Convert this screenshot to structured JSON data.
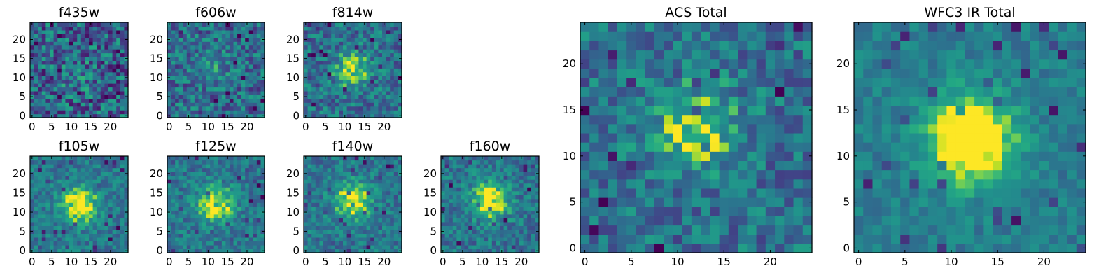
{
  "chart_data": [
    {
      "type": "heatmap",
      "title": "f435w",
      "xlim": [
        0,
        24
      ],
      "ylim": [
        0,
        24
      ],
      "xticks": [
        0,
        5,
        10,
        15,
        20
      ],
      "yticks": [
        0,
        5,
        10,
        15,
        20
      ],
      "peak": [
        12,
        10
      ],
      "peak_strength": 0.08,
      "noise": 0.55,
      "colormap": "viridis"
    },
    {
      "type": "heatmap",
      "title": "f606w",
      "xlim": [
        0,
        24
      ],
      "ylim": [
        0,
        24
      ],
      "xticks": [
        0,
        5,
        10,
        15,
        20
      ],
      "yticks": [
        0,
        5,
        10,
        15,
        20
      ],
      "peak": [
        11,
        13
      ],
      "peak_strength": 0.22,
      "noise": 0.45,
      "colormap": "viridis"
    },
    {
      "type": "heatmap",
      "title": "f814w",
      "xlim": [
        0,
        24
      ],
      "ylim": [
        0,
        24
      ],
      "xticks": [
        0,
        5,
        10,
        15,
        20
      ],
      "yticks": [
        0,
        5,
        10,
        15,
        20
      ],
      "peak": [
        12,
        12
      ],
      "peak_strength": 0.45,
      "noise": 0.4,
      "colormap": "viridis"
    },
    {
      "type": "heatmap",
      "title": "f105w",
      "xlim": [
        0,
        24
      ],
      "ylim": [
        0,
        24
      ],
      "xticks": [
        0,
        5,
        10,
        15,
        20
      ],
      "yticks": [
        0,
        5,
        10,
        15,
        20
      ],
      "peak": [
        12,
        12
      ],
      "peak_strength": 0.62,
      "noise": 0.28,
      "colormap": "viridis"
    },
    {
      "type": "heatmap",
      "title": "f125w",
      "xlim": [
        0,
        24
      ],
      "ylim": [
        0,
        24
      ],
      "xticks": [
        0,
        5,
        10,
        15,
        20
      ],
      "yticks": [
        0,
        5,
        10,
        15,
        20
      ],
      "peak": [
        12,
        12
      ],
      "peak_strength": 0.58,
      "noise": 0.3,
      "colormap": "viridis"
    },
    {
      "type": "heatmap",
      "title": "f140w",
      "xlim": [
        0,
        24
      ],
      "ylim": [
        0,
        24
      ],
      "xticks": [
        0,
        5,
        10,
        15,
        20
      ],
      "yticks": [
        0,
        5,
        10,
        15,
        20
      ],
      "peak": [
        12,
        13
      ],
      "peak_strength": 0.55,
      "noise": 0.3,
      "colormap": "viridis"
    },
    {
      "type": "heatmap",
      "title": "f160w",
      "xlim": [
        0,
        24
      ],
      "ylim": [
        0,
        24
      ],
      "xticks": [
        0,
        5,
        10,
        15,
        20
      ],
      "yticks": [
        0,
        5,
        10,
        15,
        20
      ],
      "peak": [
        12,
        13
      ],
      "peak_strength": 0.62,
      "noise": 0.32,
      "colormap": "viridis"
    },
    {
      "type": "heatmap",
      "title": "ACS Total",
      "xlim": [
        0,
        24
      ],
      "ylim": [
        0,
        24
      ],
      "xticks": [
        0,
        5,
        10,
        15,
        20
      ],
      "yticks": [
        0,
        5,
        10,
        15,
        20
      ],
      "peak": [
        12,
        13
      ],
      "peak_strength": 0.45,
      "noise": 0.38,
      "colormap": "viridis"
    },
    {
      "type": "heatmap",
      "title": "WFC3 IR Total",
      "xlim": [
        0,
        24
      ],
      "ylim": [
        0,
        24
      ],
      "xticks": [
        0,
        5,
        10,
        15,
        20
      ],
      "yticks": [
        0,
        5,
        10,
        15,
        20
      ],
      "peak": [
        12,
        12
      ],
      "peak_strength": 0.78,
      "noise": 0.2,
      "colormap": "viridis"
    }
  ]
}
